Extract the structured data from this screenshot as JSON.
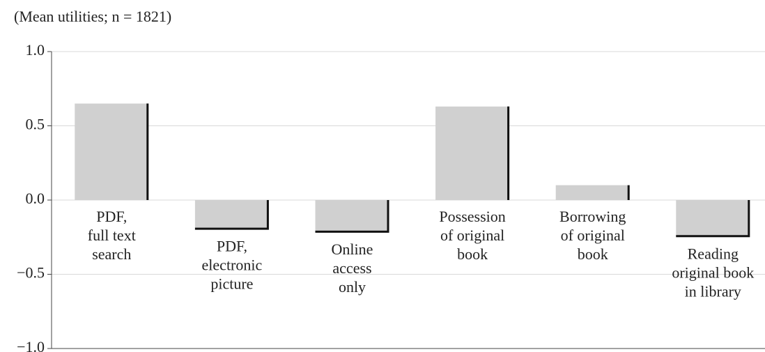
{
  "chart_data": {
    "type": "bar",
    "title": "(Mean utilities; n = 1821)",
    "categories": [
      [
        "PDF,",
        "full text",
        "search"
      ],
      [
        "PDF,",
        "electronic",
        "picture"
      ],
      [
        "Online",
        "access",
        "only"
      ],
      [
        "Possession",
        "of original",
        "book"
      ],
      [
        "Borrowing",
        "of original",
        "book"
      ],
      [
        "Reading",
        "original book",
        "in library"
      ]
    ],
    "values": [
      0.65,
      -0.2,
      -0.22,
      0.63,
      0.1,
      -0.25
    ],
    "color": "#d0d0d0",
    "ylim": [
      -1.0,
      1.0
    ],
    "yticks": [
      {
        "value": 1.0,
        "label": "1.0"
      },
      {
        "value": 0.5,
        "label": "0.5"
      },
      {
        "value": 0,
        "label": "0.0"
      },
      {
        "value": -0.5,
        "label": "−0.5"
      },
      {
        "value": -1.0,
        "label": "−1.0"
      }
    ],
    "grid": true
  }
}
